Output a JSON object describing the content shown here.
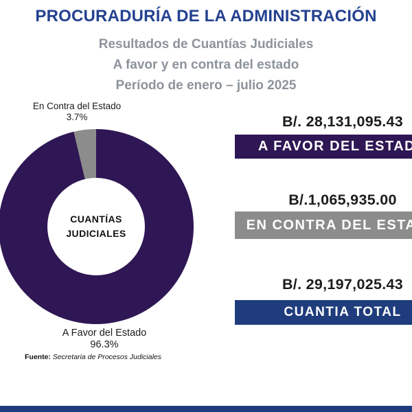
{
  "header": {
    "title": "PROCURADURÍA DE LA ADMINISTRACIÓN",
    "subtitle_lines": [
      "Resultados de Cuantías Judiciales",
      "A favor y en contra del estado",
      "Período de enero – julio 2025"
    ]
  },
  "chart_data": {
    "type": "pie",
    "donut": true,
    "title": "CUANTÍAS JUDICIALES",
    "categories": [
      "A Favor del Estado",
      "En Contra del Estado"
    ],
    "values": [
      96.3,
      3.7
    ],
    "amounts": [
      28131095.43,
      1065935.0
    ],
    "total": 29197025.43,
    "colors": [
      "#2e1754",
      "#8c8c8c"
    ],
    "labels_pct": [
      "96.3%",
      "3.7%"
    ]
  },
  "donut": {
    "center_line1": "CUANTÍAS",
    "center_line2": "JUDICIALES",
    "contra_label": "En Contra del Estado",
    "contra_pct": "3.7%",
    "favor_label": "A Favor del Estado",
    "favor_pct": "96.3%"
  },
  "results": [
    {
      "amount": "B/. 28,131,095.43",
      "label": "A FAVOR DEL ESTADO",
      "color": "#2e1754"
    },
    {
      "amount": "B/.1,065,935.00",
      "label": "EN CONTRA DEL ESTADO",
      "color": "#8c8c8c"
    },
    {
      "amount": "B/. 29,197,025.43",
      "label": "CUANTIA TOTAL",
      "color": "#1f3d7d"
    }
  ],
  "source": {
    "prefix": "Fuente:",
    "text": "Secretaria de Procesos Judiciales"
  },
  "colors": {
    "title_blue": "#23418f",
    "subtitle_gray": "#8d939b",
    "donut_purple": "#2e1754",
    "slice_gray": "#8c8c8c",
    "total_blue": "#1f3d7d",
    "footer_bar": "#1f3d7d"
  }
}
